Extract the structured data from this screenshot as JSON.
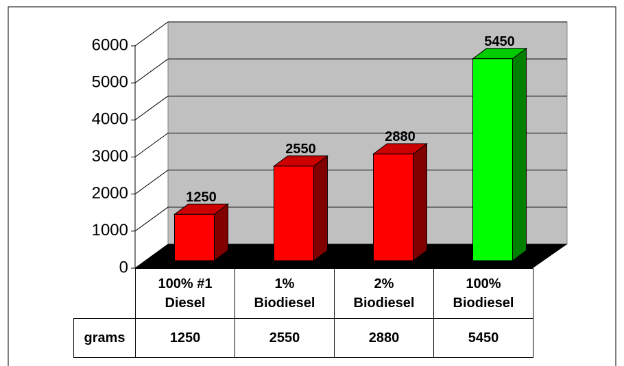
{
  "chart_data": {
    "type": "bar3d",
    "categories": [
      "100% #1\nDiesel",
      "1%\nBiodiesel",
      "2%\nBiodiesel",
      "100%\nBiodiesel"
    ],
    "series": [
      {
        "name": "grams",
        "colors": [
          "#ff0000",
          "#ff0000",
          "#ff0000",
          "#00ff00"
        ],
        "values": [
          1250,
          2550,
          2880,
          5450
        ]
      }
    ],
    "ylim": [
      0,
      6000
    ],
    "yticks": [
      0,
      1000,
      2000,
      3000,
      4000,
      5000,
      6000
    ],
    "grid": true,
    "data_table": true
  }
}
